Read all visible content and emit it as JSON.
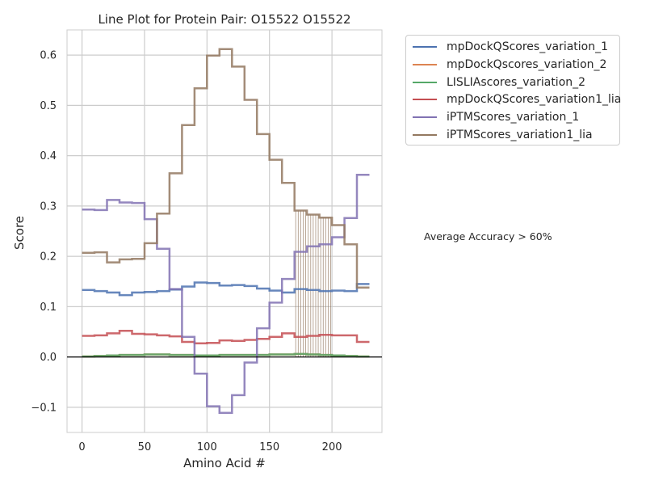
{
  "chart_data": {
    "type": "line",
    "title": "Line Plot for Protein Pair: O15522 O15522",
    "xlabel": "Amino Acid #",
    "ylabel": "Score",
    "xlim": [
      -12,
      240
    ],
    "ylim": [
      -0.15,
      0.65
    ],
    "xticks": [
      0,
      50,
      100,
      150,
      200
    ],
    "yticks": [
      -0.1,
      0.0,
      0.1,
      0.2,
      0.3,
      0.4,
      0.5,
      0.6
    ],
    "ytick_labels": [
      "−0.1",
      "0.0",
      "0.1",
      "0.2",
      "0.3",
      "0.4",
      "0.5",
      "0.6"
    ],
    "xtick_labels": [
      "0",
      "50",
      "100",
      "150",
      "200"
    ],
    "grid": true,
    "zero_line": true,
    "legend_position": "outside-upper-right",
    "annotation": "Average Accuracy > 60%",
    "step_width": 10,
    "series": [
      {
        "name": "mpDockQScores_variation_1",
        "color": "#4c72b0",
        "x": [
          0,
          10,
          20,
          30,
          40,
          50,
          60,
          70,
          80,
          90,
          100,
          110,
          120,
          130,
          140,
          150,
          160,
          170,
          180,
          190,
          200,
          210,
          220,
          230
        ],
        "y": [
          0.133,
          0.131,
          0.128,
          0.123,
          0.128,
          0.129,
          0.131,
          0.134,
          0.14,
          0.148,
          0.147,
          0.142,
          0.143,
          0.141,
          0.136,
          0.132,
          0.128,
          0.135,
          0.133,
          0.131,
          0.132,
          0.131,
          0.145,
          0.145
        ]
      },
      {
        "name": "mpDockQscores_variation_2",
        "color": "#dd8452",
        "x": [
          0,
          10,
          20,
          30,
          40,
          50,
          60,
          70,
          80,
          90,
          100,
          110,
          120,
          130,
          140,
          150,
          160,
          170,
          180,
          190,
          200,
          210,
          220,
          230
        ],
        "y": [
          0.001,
          0.002,
          0.003,
          0.004,
          0.004,
          0.005,
          0.005,
          0.004,
          0.004,
          0.003,
          0.003,
          0.004,
          0.004,
          0.004,
          0.004,
          0.005,
          0.005,
          0.006,
          0.005,
          0.004,
          0.003,
          0.002,
          0.001,
          0.001
        ]
      },
      {
        "name": "LISLIAscores_variation_2",
        "color": "#55a868",
        "x": [
          0,
          10,
          20,
          30,
          40,
          50,
          60,
          70,
          80,
          90,
          100,
          110,
          120,
          130,
          140,
          150,
          160,
          170,
          180,
          190,
          200,
          210,
          220,
          230
        ],
        "y": [
          0.001,
          0.002,
          0.003,
          0.004,
          0.004,
          0.005,
          0.005,
          0.004,
          0.004,
          0.003,
          0.003,
          0.004,
          0.004,
          0.004,
          0.004,
          0.005,
          0.005,
          0.006,
          0.005,
          0.004,
          0.003,
          0.002,
          0.001,
          0.001
        ]
      },
      {
        "name": "mpDockQScores_variation1_lia",
        "color": "#c44e52",
        "x": [
          0,
          10,
          20,
          30,
          40,
          50,
          60,
          70,
          80,
          90,
          100,
          110,
          120,
          130,
          140,
          150,
          160,
          170,
          180,
          190,
          200,
          210,
          220,
          230
        ],
        "y": [
          0.042,
          0.043,
          0.047,
          0.052,
          0.046,
          0.045,
          0.043,
          0.041,
          0.03,
          0.027,
          0.028,
          0.033,
          0.032,
          0.034,
          0.036,
          0.04,
          0.047,
          0.04,
          0.042,
          0.044,
          0.043,
          0.043,
          0.03,
          0.03
        ]
      },
      {
        "name": "iPTMScores_variation_1",
        "color": "#8172b3",
        "x": [
          0,
          10,
          20,
          30,
          40,
          50,
          60,
          70,
          80,
          90,
          100,
          110,
          120,
          130,
          140,
          150,
          160,
          170,
          180,
          190,
          200,
          210,
          220,
          230
        ],
        "y": [
          0.293,
          0.292,
          0.312,
          0.307,
          0.306,
          0.274,
          0.215,
          0.135,
          0.04,
          -0.033,
          -0.098,
          -0.111,
          -0.076,
          -0.011,
          0.057,
          0.108,
          0.155,
          0.209,
          0.22,
          0.224,
          0.238,
          0.276,
          0.362,
          0.362
        ]
      },
      {
        "name": "iPTMScores_variation1_lia",
        "color": "#937860",
        "x": [
          0,
          10,
          20,
          30,
          40,
          50,
          60,
          70,
          80,
          90,
          100,
          110,
          120,
          130,
          140,
          150,
          160,
          170,
          180,
          190,
          200,
          210,
          220,
          230
        ],
        "y": [
          0.207,
          0.208,
          0.188,
          0.194,
          0.195,
          0.226,
          0.285,
          0.365,
          0.461,
          0.534,
          0.599,
          0.612,
          0.577,
          0.511,
          0.443,
          0.392,
          0.346,
          0.291,
          0.283,
          0.277,
          0.262,
          0.224,
          0.138,
          0.138
        ]
      }
    ]
  }
}
